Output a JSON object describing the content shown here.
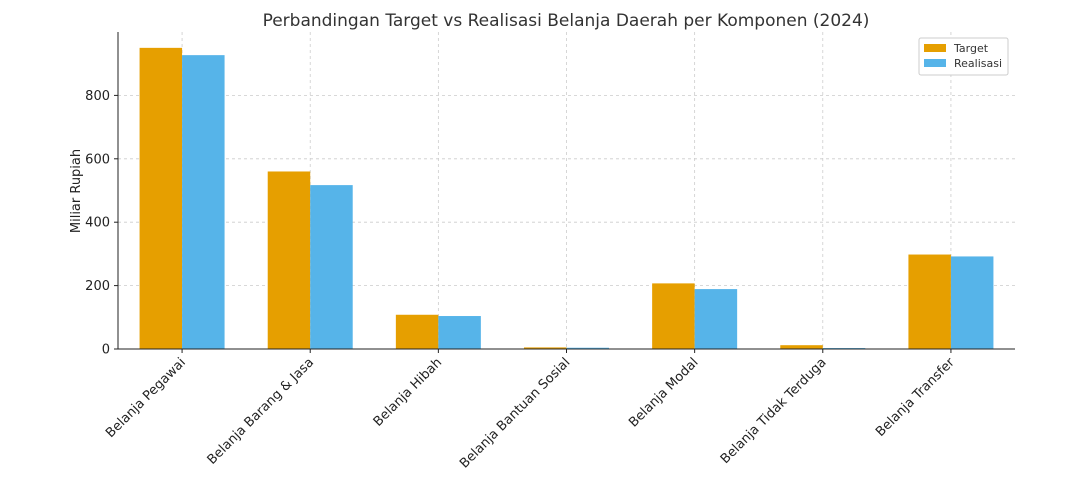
{
  "chart_data": {
    "type": "bar",
    "title": "Perbandingan Target vs Realisasi Belanja Daerah per Komponen (2024)",
    "xlabel": "",
    "ylabel": "Miliar Rupiah",
    "categories": [
      "Belanja Pegawai",
      "Belanja Barang & Jasa",
      "Belanja Hibah",
      "Belanja Bantuan Sosial",
      "Belanja Modal",
      "Belanja Tidak Terduga",
      "Belanja Transfer"
    ],
    "series": [
      {
        "name": "Target",
        "color": "#E69F00",
        "values": [
          950,
          560,
          108,
          5,
          207,
          12,
          298
        ]
      },
      {
        "name": "Realisasi",
        "color": "#56B4E9",
        "values": [
          927,
          517,
          104,
          4,
          189,
          3,
          292
        ]
      }
    ],
    "ylim": [
      0,
      1000
    ],
    "yticks": [
      0,
      200,
      400,
      600,
      800
    ],
    "grid": true,
    "legend": "top-right"
  }
}
